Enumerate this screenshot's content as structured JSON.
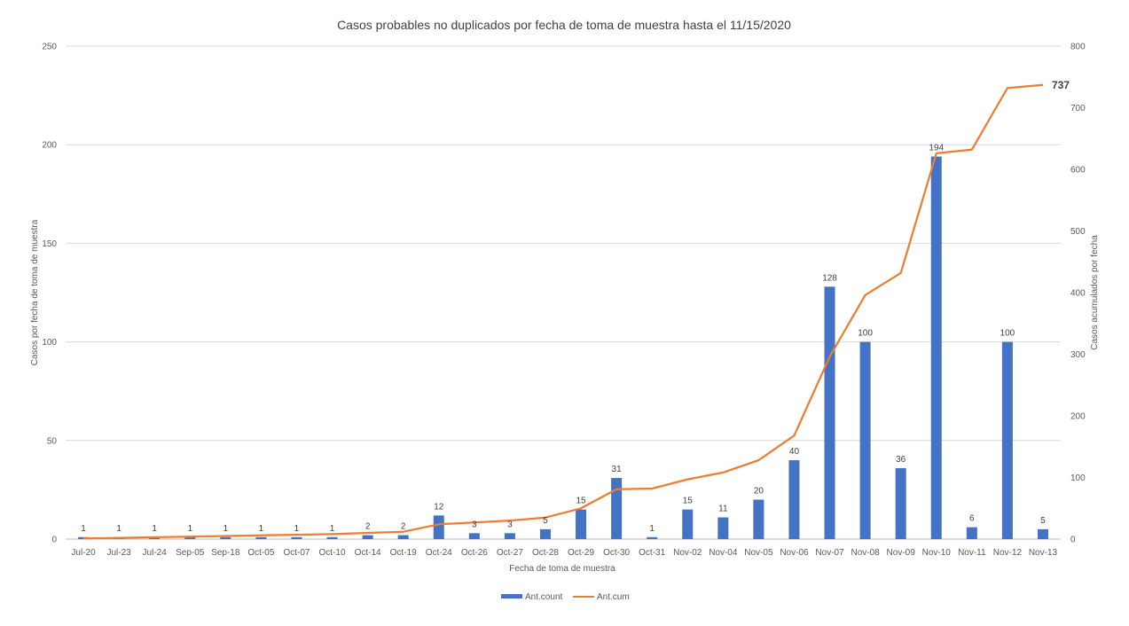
{
  "chart_data": {
    "type": "bar+line",
    "title": "Casos probables no duplicados por fecha de toma de muestra hasta el 11/15/2020",
    "xlabel": "Fecha de toma de muestra",
    "ylabel": "Casos por fecha de toma de muestra",
    "y2label": "Casos acumulados por fecha",
    "ylim": [
      0,
      250
    ],
    "y_ticks": [
      0,
      50,
      100,
      150,
      200,
      250
    ],
    "y2lim": [
      0,
      800
    ],
    "y2_ticks": [
      0,
      100,
      200,
      300,
      400,
      500,
      600,
      700,
      800
    ],
    "grid": true,
    "legend_position": "bottom",
    "categories": [
      "Jul-20",
      "Jul-23",
      "Jul-24",
      "Sep-05",
      "Sep-18",
      "Oct-05",
      "Oct-07",
      "Oct-10",
      "Oct-14",
      "Oct-19",
      "Oct-24",
      "Oct-26",
      "Oct-27",
      "Oct-28",
      "Oct-29",
      "Oct-30",
      "Oct-31",
      "Nov-02",
      "Nov-04",
      "Nov-05",
      "Nov-06",
      "Nov-07",
      "Nov-08",
      "Nov-09",
      "Nov-10",
      "Nov-11",
      "Nov-12",
      "Nov-13"
    ],
    "series": [
      {
        "name": "Ant.count",
        "kind": "bar",
        "axis": "left",
        "color": "#4472C4",
        "values": [
          1,
          1,
          1,
          1,
          1,
          1,
          1,
          1,
          2,
          2,
          12,
          3,
          3,
          5,
          15,
          31,
          1,
          15,
          11,
          20,
          40,
          128,
          100,
          36,
          194,
          6,
          100,
          5
        ],
        "data_labels": [
          "1",
          "1",
          "1",
          "1",
          "1",
          "1",
          "1",
          "1",
          "2",
          "2",
          "12",
          "3",
          "3",
          "5",
          "15",
          "31",
          "1",
          "15",
          "11",
          "20",
          "40",
          "128",
          "100",
          "36",
          "194",
          "6",
          "100",
          "5"
        ]
      },
      {
        "name": "Ant.cum",
        "kind": "line",
        "axis": "right",
        "color": "#ED7D31",
        "values": [
          1,
          2,
          3,
          4,
          5,
          6,
          7,
          8,
          10,
          12,
          24,
          27,
          30,
          35,
          50,
          81,
          82,
          97,
          108,
          128,
          168,
          296,
          396,
          432,
          626,
          632,
          732,
          737
        ],
        "end_label": "737"
      }
    ]
  }
}
